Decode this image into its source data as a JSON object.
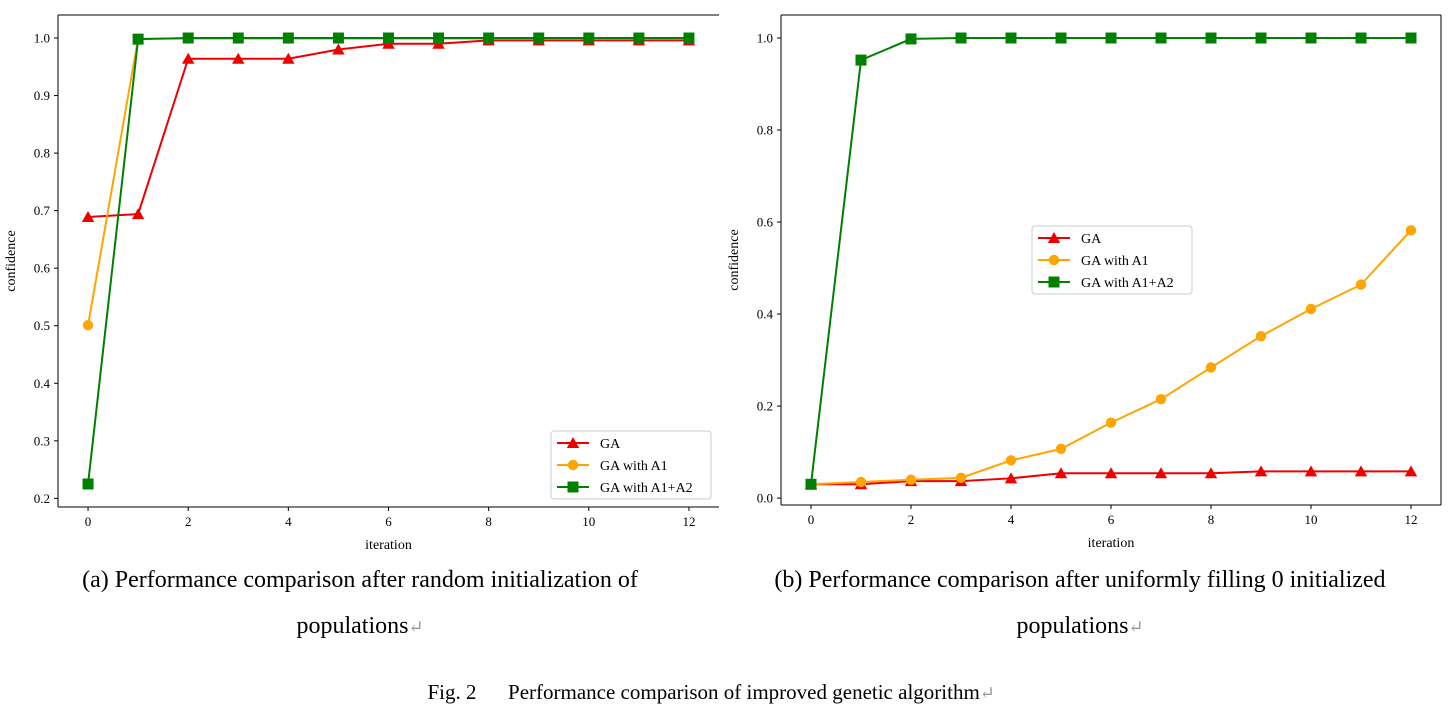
{
  "figure": {
    "label": "Fig. 2",
    "title": "Performance comparison of improved genetic algorithm",
    "return_mark": "↵"
  },
  "colors": {
    "GA": "#ee0000",
    "GA with A1": "#ffa500",
    "GA with A1+A2": "#008000"
  },
  "chart_data": [
    {
      "type": "line",
      "caption_line1": "(a) Performance comparison after random initialization of",
      "caption_line2": "populations",
      "xlabel": "iteration",
      "ylabel": "confidence",
      "xlim": [
        -0.6,
        12.6
      ],
      "ylim": [
        0.185,
        1.04
      ],
      "xticks": [
        0,
        2,
        4,
        6,
        8,
        10,
        12
      ],
      "yticks": [
        0.2,
        0.3,
        0.4,
        0.5,
        0.6,
        0.7,
        0.8,
        0.9,
        1.0
      ],
      "x": [
        0,
        1,
        2,
        3,
        4,
        5,
        6,
        7,
        8,
        9,
        10,
        11,
        12
      ],
      "legend_position": "lower right",
      "series": [
        {
          "name": "GA",
          "marker": "triangle",
          "values": [
            0.689,
            0.694,
            0.964,
            0.964,
            0.964,
            0.98,
            0.99,
            0.99,
            0.996,
            0.996,
            0.996,
            0.996,
            0.996
          ]
        },
        {
          "name": "GA with A1",
          "marker": "circle",
          "values": [
            0.501,
            0.999,
            0.999,
            0.999,
            0.999,
            0.999,
            0.999,
            0.999,
            0.999,
            0.999,
            0.999,
            0.999,
            0.999
          ]
        },
        {
          "name": "GA with A1+A2",
          "marker": "square",
          "values": [
            0.225,
            0.998,
            1.0,
            1.0,
            1.0,
            1.0,
            1.0,
            1.0,
            1.0,
            1.0,
            1.0,
            1.0,
            1.0
          ]
        }
      ]
    },
    {
      "type": "line",
      "caption_line1": "(b) Performance comparison after uniformly filling 0 initialized",
      "caption_line2": "populations",
      "xlabel": "iteration",
      "ylabel": "confidence",
      "xlim": [
        -0.6,
        12.6
      ],
      "ylim": [
        -0.015,
        1.05
      ],
      "xticks": [
        0,
        2,
        4,
        6,
        8,
        10,
        12
      ],
      "yticks": [
        0.0,
        0.2,
        0.4,
        0.6,
        0.8,
        1.0
      ],
      "x": [
        0,
        1,
        2,
        3,
        4,
        5,
        6,
        7,
        8,
        9,
        10,
        11,
        12
      ],
      "legend_position": "center left",
      "series": [
        {
          "name": "GA",
          "marker": "triangle",
          "values": [
            0.03,
            0.03,
            0.037,
            0.037,
            0.043,
            0.054,
            0.054,
            0.054,
            0.054,
            0.058,
            0.058,
            0.058,
            0.058
          ]
        },
        {
          "name": "GA with A1",
          "marker": "circle",
          "values": [
            0.03,
            0.035,
            0.04,
            0.044,
            0.082,
            0.107,
            0.164,
            0.215,
            0.284,
            0.352,
            0.411,
            0.464,
            0.582
          ]
        },
        {
          "name": "GA with A1+A2",
          "marker": "square",
          "values": [
            0.03,
            0.952,
            0.998,
            1.0,
            1.0,
            1.0,
            1.0,
            1.0,
            1.0,
            1.0,
            1.0,
            1.0,
            1.0
          ]
        }
      ]
    }
  ]
}
